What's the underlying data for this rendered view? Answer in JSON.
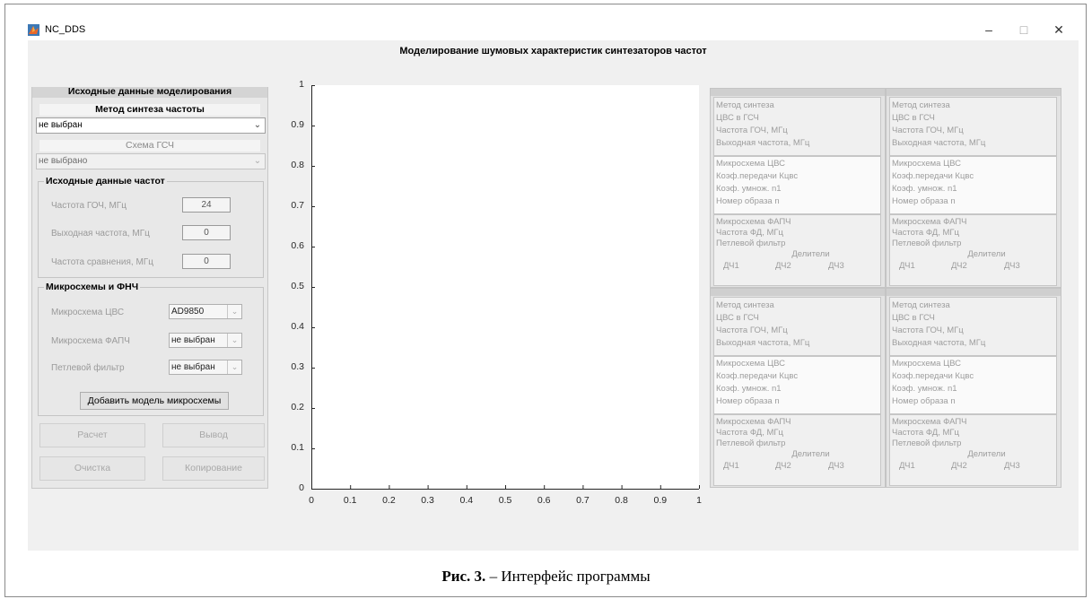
{
  "window": {
    "title": "NC_DDS",
    "minimize_glyph": "–",
    "maximize_glyph": "□",
    "close_glyph": "✕",
    "icon": "matlab-icon"
  },
  "heading": "Моделирование шумовых характеристик  синтезаторов частот",
  "left_panel": {
    "title": "Исходные данные моделирования",
    "method_label": "Метод синтеза частоты",
    "method_value": "не выбран",
    "scheme_label": "Схема ГСЧ",
    "scheme_value": "не выбрано",
    "freq_group": {
      "title": "Исходные данные частот",
      "fields": [
        {
          "label": "Частота ГОЧ, МГц",
          "value": "24"
        },
        {
          "label": "Выходная частота, МГц",
          "value": "0"
        },
        {
          "label": "Частота сравнения, МГц",
          "value": "0"
        }
      ]
    },
    "chips_group": {
      "title": "Микросхемы и ФНЧ",
      "fields": [
        {
          "label": "Микросхема ЦВС",
          "value": "AD9850"
        },
        {
          "label": "Микросхема ФАПЧ",
          "value": "не выбран"
        },
        {
          "label": "Петлевой фильтр",
          "value": "не выбран"
        }
      ],
      "add_button": "Добавить модель микросхемы"
    },
    "buttons": {
      "calc": "Расчет",
      "output": "Вывод",
      "clear": "Очистка",
      "copy": "Копирование"
    }
  },
  "axes": {
    "y_ticks": [
      "1",
      "0.9",
      "0.8",
      "0.7",
      "0.6",
      "0.5",
      "0.4",
      "0.3",
      "0.2",
      "0.1",
      "0"
    ],
    "x_ticks": [
      "0",
      "0.1",
      "0.2",
      "0.3",
      "0.4",
      "0.5",
      "0.6",
      "0.7",
      "0.8",
      "0.9",
      "1"
    ]
  },
  "result_block": {
    "s1": [
      "Метод синтеза",
      "ЦВС в ГСЧ",
      "Частота ГОЧ, МГц",
      "Выходная частота, МГц"
    ],
    "s2": [
      "Микросхема ЦВС",
      "Коэф.передачи Кцвс",
      "Коэф. умнож. n1",
      "Номер образа n"
    ],
    "s3": [
      "Микросхема ФАПЧ",
      "Частота ФД, МГц",
      "Петлевой фильтр"
    ],
    "dividers_label": "Делители",
    "dividers": [
      "ДЧ1",
      "ДЧ2",
      "ДЧ3"
    ]
  },
  "caption": {
    "bold": "Рис. 3.",
    "text": " – Интерфейс программы"
  }
}
